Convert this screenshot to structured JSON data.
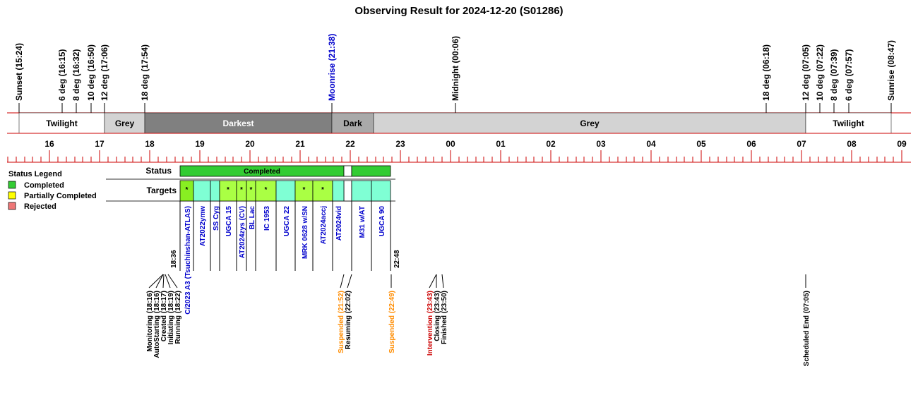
{
  "title": "Observing Result for 2024-12-20 (S01286)",
  "chart_data": {
    "type": "timeline",
    "x_axis": {
      "start": "15:00",
      "end": "09:00",
      "hour_labels": [
        "16",
        "17",
        "18",
        "19",
        "20",
        "21",
        "22",
        "23",
        "00",
        "01",
        "02",
        "03",
        "04",
        "05",
        "06",
        "07",
        "08",
        "09"
      ]
    },
    "sky_events": [
      {
        "label": "Sunset (15:24)",
        "time": "15:24",
        "color": "#000000"
      },
      {
        "label": "6 deg (16:15)",
        "time": "16:15",
        "color": "#000000"
      },
      {
        "label": "8 deg (16:32)",
        "time": "16:32",
        "color": "#000000"
      },
      {
        "label": "10 deg (16:50)",
        "time": "16:50",
        "color": "#000000"
      },
      {
        "label": "12 deg (17:06)",
        "time": "17:06",
        "color": "#000000"
      },
      {
        "label": "18 deg (17:54)",
        "time": "17:54",
        "color": "#000000"
      },
      {
        "label": "Moonrise (21:38)",
        "time": "21:38",
        "color": "#0000cc"
      },
      {
        "label": "Midnight (00:06)",
        "time": "00:06",
        "color": "#000000"
      },
      {
        "label": "18 deg (06:18)",
        "time": "06:18",
        "color": "#000000"
      },
      {
        "label": "12 deg (07:05)",
        "time": "07:05",
        "color": "#000000"
      },
      {
        "label": "10 deg (07:22)",
        "time": "07:22",
        "color": "#000000"
      },
      {
        "label": "8 deg (07:39)",
        "time": "07:39",
        "color": "#000000"
      },
      {
        "label": "6 deg (07:57)",
        "time": "07:57",
        "color": "#000000"
      },
      {
        "label": "Sunrise (08:47)",
        "time": "08:47",
        "color": "#000000"
      }
    ],
    "sky_bands": [
      {
        "label": "Twilight",
        "start": "15:24",
        "end": "17:06",
        "color": "#ffffff",
        "text_color": "#000000"
      },
      {
        "label": "Grey",
        "start": "17:06",
        "end": "17:54",
        "color": "#d3d3d3",
        "text_color": "#000000"
      },
      {
        "label": "Darkest",
        "start": "17:54",
        "end": "21:38",
        "color": "#808080",
        "text_color": "#ffffff"
      },
      {
        "label": "Dark",
        "start": "21:38",
        "end": "22:28",
        "color": "#a9a9a9",
        "text_color": "#000000"
      },
      {
        "label": "Grey",
        "start": "22:28",
        "end": "07:05",
        "color": "#d3d3d3",
        "text_color": "#000000"
      },
      {
        "label": "Twilight",
        "start": "07:05",
        "end": "08:47",
        "color": "#ffffff",
        "text_color": "#000000"
      }
    ],
    "status_row_label": "Status",
    "status_segments": [
      {
        "label": "Completed",
        "start": "18:36",
        "end": "21:52",
        "color": "#33cc33"
      },
      {
        "label": "",
        "start": "21:52",
        "end": "22:02",
        "color": "#ffffff"
      },
      {
        "label": "",
        "start": "22:02",
        "end": "22:48",
        "color": "#33cc33"
      }
    ],
    "targets_row_label": "Targets",
    "targets": [
      {
        "name": "C/2023 A3 (Tsuchinshan-ATLAS)",
        "start": "18:36",
        "end": "18:52",
        "color": "#88ee22",
        "mark": "*"
      },
      {
        "name": "AT2022ymw",
        "start": "18:52",
        "end": "19:13",
        "color": "#7fffd4",
        "mark": ""
      },
      {
        "name": "SS Cyg",
        "start": "19:13",
        "end": "19:24",
        "color": "#7fffd4",
        "mark": ""
      },
      {
        "name": "UGCA 15",
        "start": "19:24",
        "end": "19:44",
        "color": "#aaff44",
        "mark": "*"
      },
      {
        "name": "AT2024zys (CV)",
        "start": "19:44",
        "end": "19:56",
        "color": "#aaff44",
        "mark": "*"
      },
      {
        "name": "BL Lac",
        "start": "19:56",
        "end": "20:07",
        "color": "#aaff44",
        "mark": "*"
      },
      {
        "name": "IC 1953",
        "start": "20:07",
        "end": "20:31",
        "color": "#aaff44",
        "mark": "*"
      },
      {
        "name": "UGCA 22",
        "start": "20:31",
        "end": "20:54",
        "color": "#7fffd4",
        "mark": ""
      },
      {
        "name": "MRK 0628 w/SN",
        "start": "20:54",
        "end": "21:15",
        "color": "#aaff44",
        "mark": "*"
      },
      {
        "name": "AT2024accj",
        "start": "21:15",
        "end": "21:39",
        "color": "#aaff44",
        "mark": "*"
      },
      {
        "name": "AT2024vid",
        "start": "21:39",
        "end": "21:52",
        "color": "#7fffd4",
        "mark": ""
      },
      {
        "name": "M31 w/AT",
        "start": "22:02",
        "end": "22:25",
        "color": "#7fffd4",
        "mark": ""
      },
      {
        "name": "UGCA 90",
        "start": "22:25",
        "end": "22:48",
        "color": "#7fffd4",
        "mark": ""
      }
    ],
    "run_start_label": "18:36",
    "run_end_label": "22:48",
    "system_events": [
      {
        "label": "Monitoring (18:16)",
        "time": "18:16",
        "color": "#000000"
      },
      {
        "label": "AutoStarting (18:16)",
        "time": "18:16",
        "color": "#000000"
      },
      {
        "label": "Created (18:17)",
        "time": "18:17",
        "color": "#000000"
      },
      {
        "label": "Initiating (18:19)",
        "time": "18:19",
        "color": "#000000"
      },
      {
        "label": "Running (18:22)",
        "time": "18:22",
        "color": "#000000"
      },
      {
        "label": "Suspended (21:52)",
        "time": "21:52",
        "color": "#ff8c00"
      },
      {
        "label": "Resuming (22:02)",
        "time": "22:02",
        "color": "#000000"
      },
      {
        "label": "Suspended (22:49)",
        "time": "22:49",
        "color": "#ff8c00"
      },
      {
        "label": "Intervention (23:43)",
        "time": "23:43",
        "color": "#cc0000"
      },
      {
        "label": "Closing (23:43)",
        "time": "23:43",
        "color": "#000000"
      },
      {
        "label": "Finished (23:50)",
        "time": "23:50",
        "color": "#000000"
      },
      {
        "label": "Scheduled End (07:05)",
        "time": "07:05",
        "color": "#000000"
      }
    ],
    "legend": {
      "title": "Status Legend",
      "items": [
        {
          "label": "Completed",
          "color": "#33cc33"
        },
        {
          "label": "Partially Completed",
          "color": "#ffff00"
        },
        {
          "label": "Rejected",
          "color": "#ee7777"
        }
      ]
    },
    "colors": {
      "axis_line": "#cc0000",
      "band_border": "#000000"
    }
  }
}
